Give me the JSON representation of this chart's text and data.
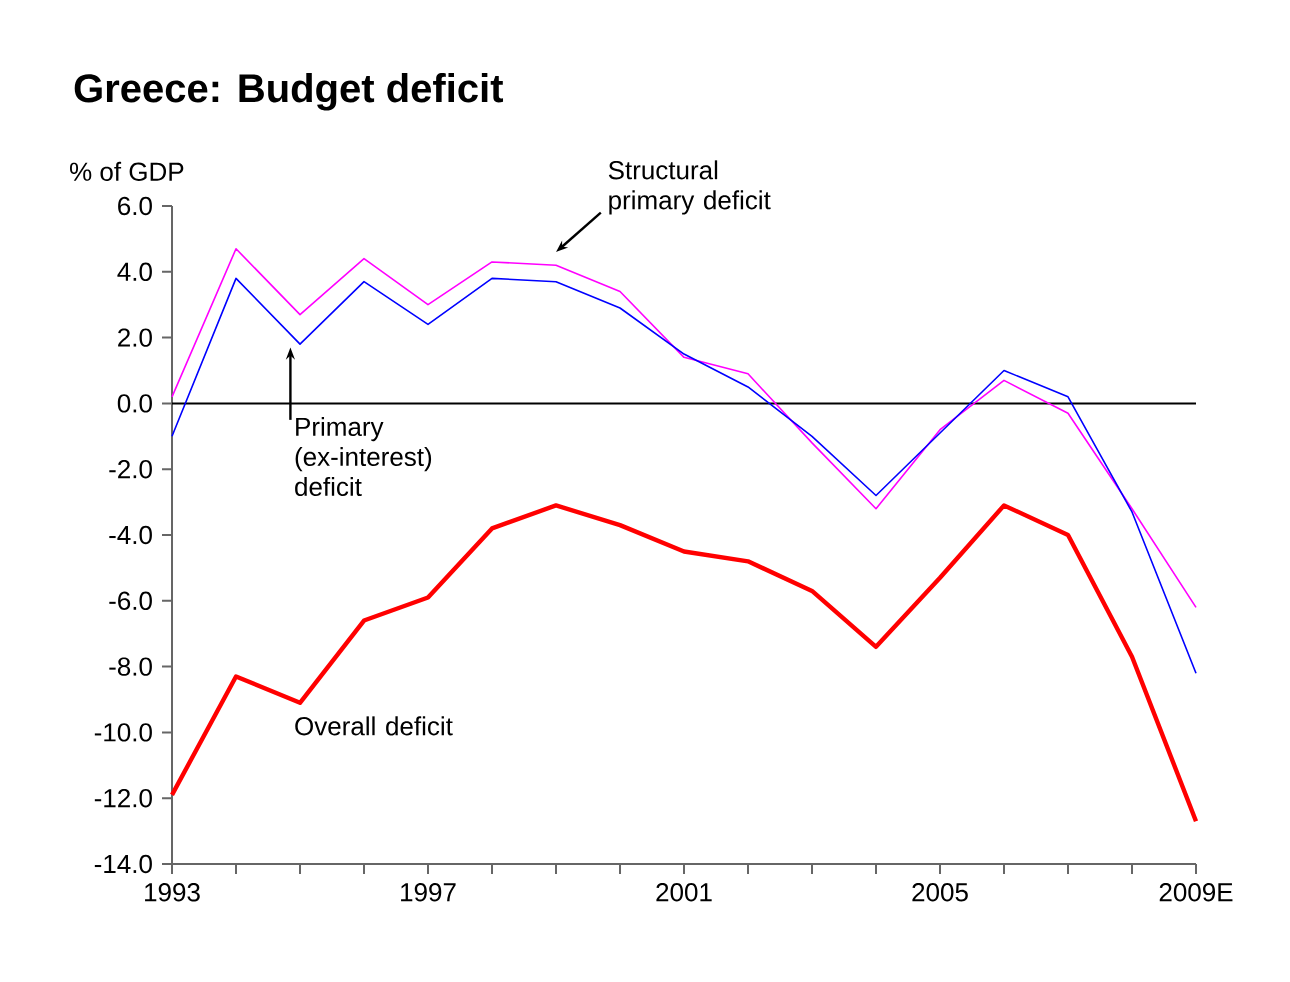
{
  "chart_data": {
    "type": "line",
    "title": "Greece: Budget deficit",
    "ylabel": "% of GDP",
    "categories": [
      "1993",
      null,
      null,
      null,
      "1997",
      null,
      null,
      null,
      "2001",
      null,
      null,
      null,
      "2005",
      null,
      null,
      null,
      "2009E"
    ],
    "series": [
      {
        "name": "Structural primary deficit",
        "color": "#ff00ff",
        "values": [
          0.2,
          4.7,
          2.7,
          4.4,
          3.0,
          4.3,
          4.2,
          3.4,
          1.4,
          0.9,
          -1.2,
          -3.2,
          -0.8,
          0.7,
          -0.3,
          -3.2,
          -6.2
        ]
      },
      {
        "name": "Primary (ex-interest) deficit",
        "color": "#0000ff",
        "values": [
          -1.0,
          3.8,
          1.8,
          3.7,
          2.4,
          3.8,
          3.7,
          2.9,
          1.5,
          0.5,
          -1.0,
          -2.8,
          -0.9,
          1.0,
          0.2,
          -3.3,
          -8.2
        ]
      },
      {
        "name": "Overall deficit",
        "color": "#ff0000",
        "values": [
          -11.9,
          -8.3,
          -9.1,
          -6.6,
          -5.9,
          -3.8,
          -3.1,
          -3.7,
          -4.5,
          -4.8,
          -5.7,
          -7.4,
          -5.3,
          -3.1,
          -4.0,
          -7.7,
          -12.7
        ]
      }
    ],
    "ylim": [
      -14,
      6
    ],
    "yticks": [
      {
        "value": -14,
        "label": "-14.0"
      },
      {
        "value": -12,
        "label": "-12.0"
      },
      {
        "value": -10,
        "label": "-10.0"
      },
      {
        "value": -8,
        "label": "-8.0"
      },
      {
        "value": -6,
        "label": "-6.0"
      },
      {
        "value": -4,
        "label": "-4.0"
      },
      {
        "value": -2,
        "label": "-2.0"
      },
      {
        "value": 0,
        "label": "0.0"
      },
      {
        "value": 2,
        "label": "2.0"
      },
      {
        "value": 4,
        "label": "4.0"
      },
      {
        "value": 6,
        "label": "6.0"
      }
    ],
    "ref_lines": [
      {
        "axis": "y",
        "value": 0,
        "color": "#000000"
      }
    ],
    "grid": false,
    "legend": false,
    "marker": "none",
    "line_style": "solid"
  }
}
